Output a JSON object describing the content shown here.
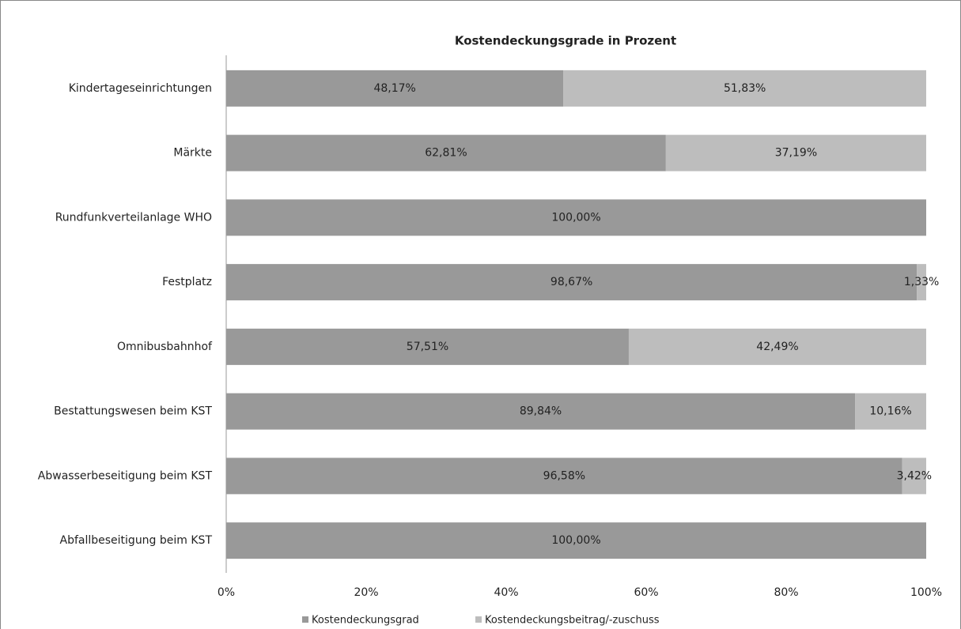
{
  "chart_data": {
    "type": "bar",
    "orientation": "horizontal",
    "stacked": true,
    "title": "Kostendeckungsgrade in Prozent",
    "categories": [
      "Kindertageseinrichtungen",
      "Märkte",
      "Rundfunkverteilanlage WHO",
      "Festplatz",
      "Omnibusbahnhof",
      "Bestattungswesen beim KST",
      "Abwasserbeseitigung beim KST",
      "Abfallbeseitigung beim KST"
    ],
    "series": [
      {
        "name": "Kostendeckungsgrad",
        "color": "#999999",
        "values": [
          48.17,
          62.81,
          100,
          98.67,
          57.51,
          89.84,
          96.58,
          100
        ],
        "value_labels": [
          "48,17%",
          "62,81%",
          "100,00%",
          "98,67%",
          "57,51%",
          "89,84%",
          "96,58%",
          "100,00%"
        ]
      },
      {
        "name": "Kostendeckungsbeitrag/-zuschuss",
        "color": "#bdbdbd",
        "values": [
          51.83,
          37.19,
          0,
          1.33,
          42.49,
          10.16,
          3.42,
          0
        ],
        "value_labels": [
          "51,83%",
          "37,19%",
          null,
          "1,33%",
          "42,49%",
          "10,16%",
          "3,42%",
          null
        ]
      }
    ],
    "xlim": [
      0,
      100
    ],
    "xticks": [
      {
        "value": 0,
        "label": "0%"
      },
      {
        "value": 20,
        "label": "20%"
      },
      {
        "value": 40,
        "label": "40%"
      },
      {
        "value": 60,
        "label": "60%"
      },
      {
        "value": 80,
        "label": "80%"
      },
      {
        "value": 100,
        "label": "100%"
      }
    ],
    "legend": "bottom"
  }
}
